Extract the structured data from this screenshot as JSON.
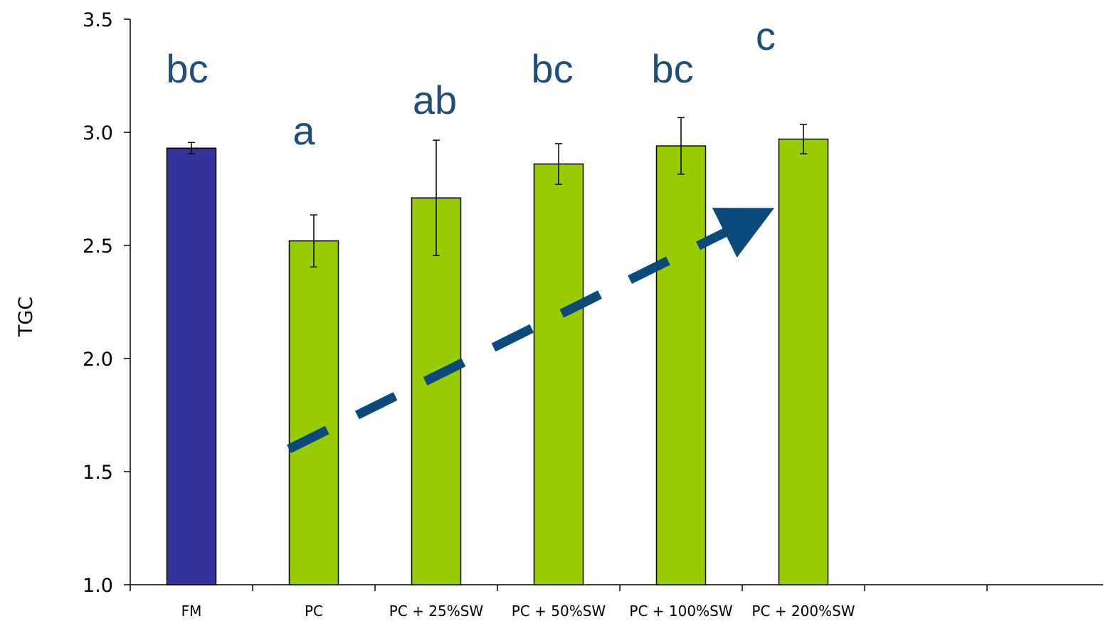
{
  "chart_data": {
    "type": "bar",
    "ylabel": "TGC",
    "xlabel": "",
    "ylim": [
      1.0,
      3.5
    ],
    "yticks": [
      "1.0",
      "1.5",
      "2.0",
      "2.5",
      "3.0",
      "3.5"
    ],
    "categories": [
      "FM",
      "PC",
      "PC + 25%SW",
      "PC + 50%SW",
      "PC + 100%SW",
      "PC + 200%SW"
    ],
    "values": [
      2.93,
      2.52,
      2.71,
      2.86,
      2.94,
      2.97
    ],
    "error": [
      0.025,
      0.115,
      0.255,
      0.09,
      0.125,
      0.065
    ],
    "significance_letters": [
      "bc",
      "a",
      "ab",
      "bc",
      "bc",
      "c"
    ],
    "bar_colors": [
      "#333399",
      "#99cc00",
      "#99cc00",
      "#99cc00",
      "#99cc00",
      "#99cc00"
    ],
    "annotation": {
      "kind": "dashed-trend-arrow",
      "color": "#0b4a7a",
      "from_category": "PC",
      "to_category": "PC + 200%SW",
      "from_value": 1.6,
      "to_value": 2.62
    },
    "letter_color": "#1f4e79",
    "grid": false,
    "legend": "none"
  }
}
